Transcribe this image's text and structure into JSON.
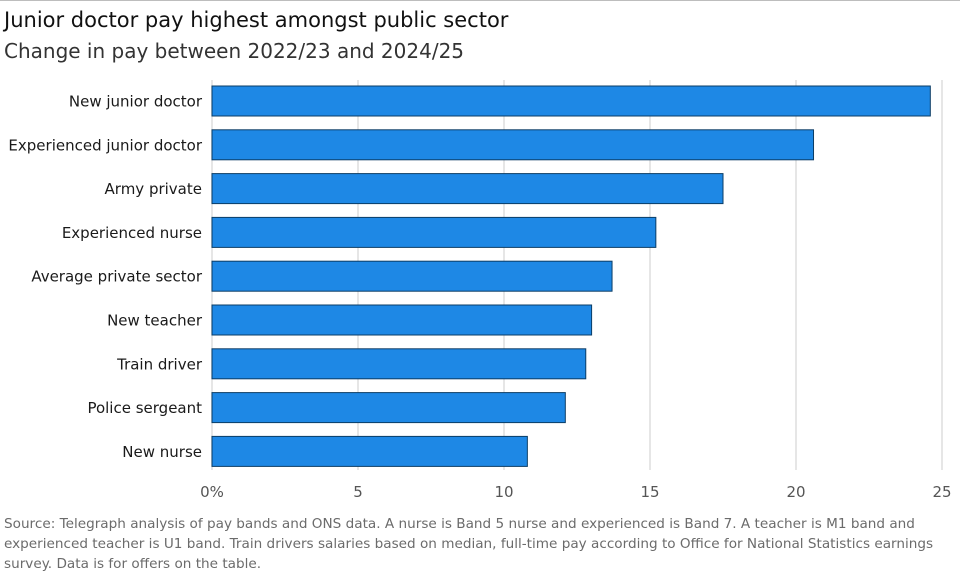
{
  "header": {
    "title": "Junior doctor pay highest amongst public sector",
    "subtitle": "Change in pay between 2022/23 and 2024/25"
  },
  "chart_data": {
    "type": "bar",
    "orientation": "horizontal",
    "title": "Junior doctor pay highest amongst public sector",
    "subtitle": "Change in pay between 2022/23 and 2024/25",
    "categories": [
      "New junior doctor",
      "Experienced junior doctor",
      "Army private",
      "Experienced nurse",
      "Average private sector",
      "New teacher",
      "Train driver",
      "Police sergeant",
      "New nurse"
    ],
    "values": [
      24.6,
      20.6,
      17.5,
      15.2,
      13.7,
      13.0,
      12.8,
      12.1,
      10.8
    ],
    "xlim": [
      0,
      25
    ],
    "xticks": [
      0,
      5,
      10,
      15,
      20,
      25
    ],
    "xtick_labels": [
      "0%",
      "5",
      "10",
      "15",
      "20",
      "25"
    ],
    "grid": true,
    "bar_color": "#1e88e5",
    "bar_edge_color": "#0b3d66",
    "grid_color": "#dddddd"
  },
  "footer": {
    "source": "Source: Telegraph analysis of pay bands and ONS data. A nurse is Band 5 nurse and experienced is Band 7. A teacher is M1 band and experienced teacher is U1 band. Train drivers salaries based on median, full-time pay according to Office for National Statistics earnings survey. Data is for offers on the table."
  }
}
